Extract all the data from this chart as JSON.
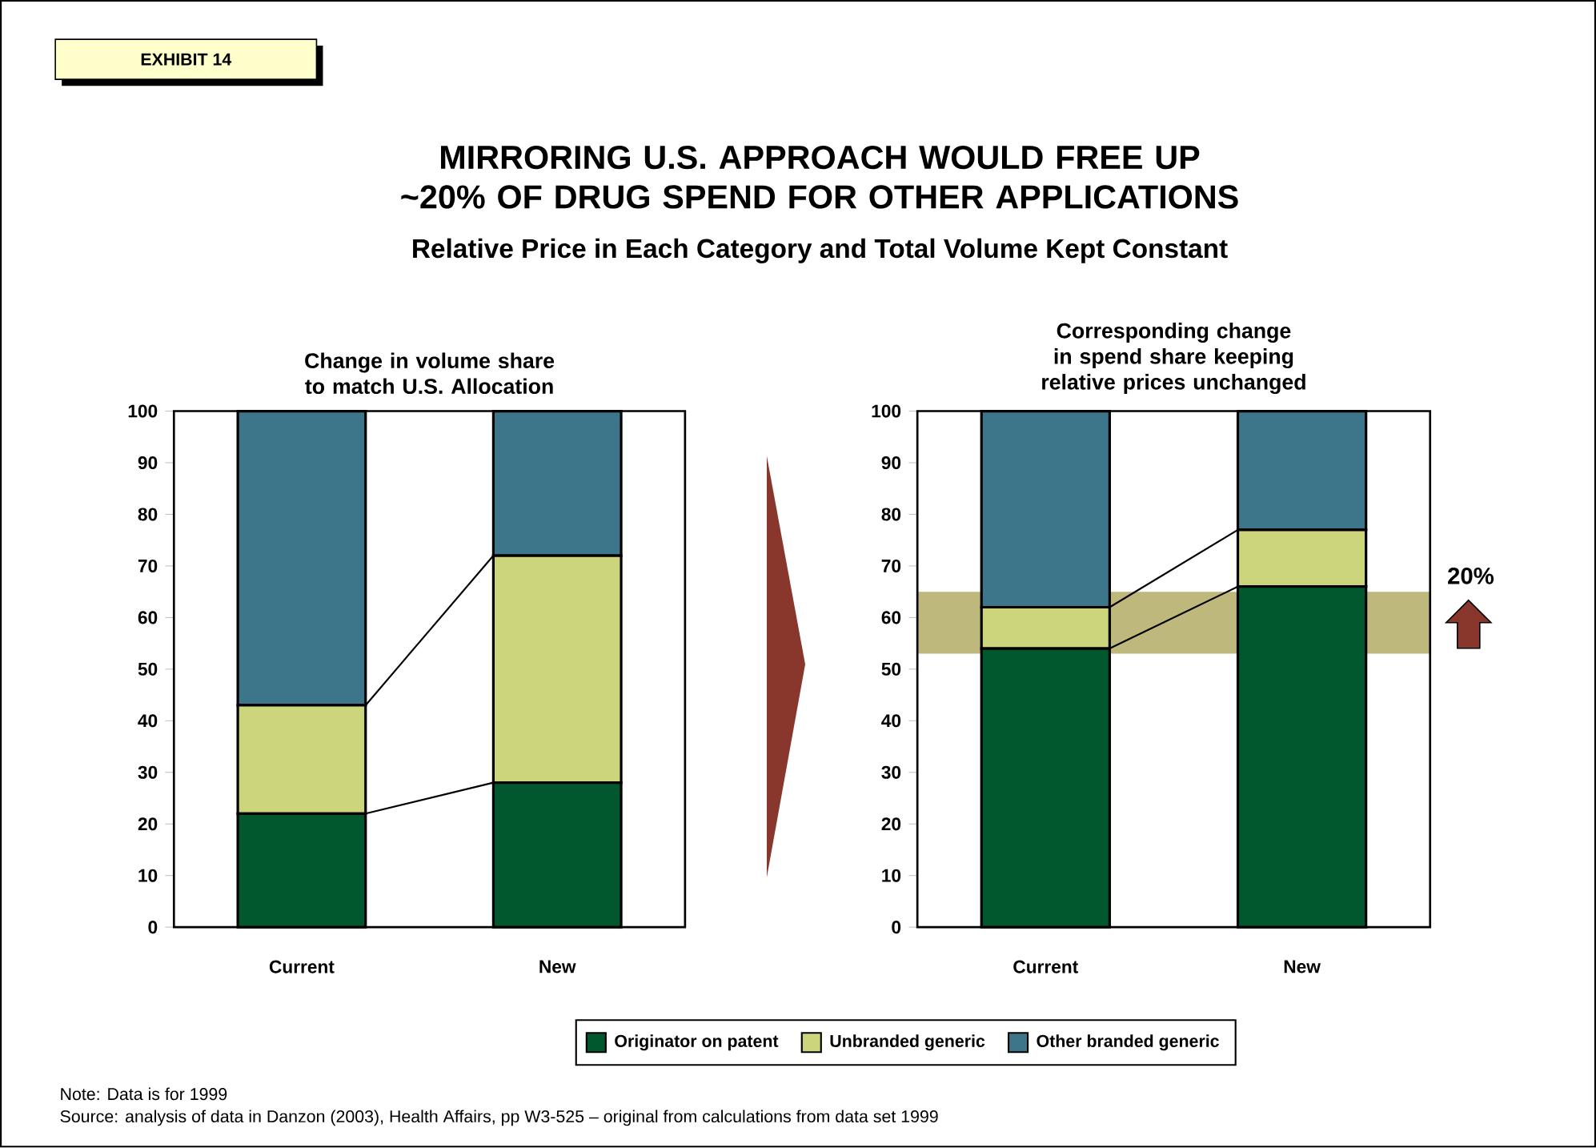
{
  "chart_data": [
    {
      "type": "bar",
      "stacked": true,
      "title": "Change in volume share to match U.S. Allocation",
      "categories": [
        "Current",
        "New"
      ],
      "series": [
        {
          "color": "#02582e",
          "values": [
            22,
            28
          ]
        },
        {
          "color": "#cdd57c",
          "values": [
            21,
            44
          ]
        },
        {
          "color": "#3d768a",
          "values": [
            57,
            28
          ]
        }
      ],
      "ylim": [
        0,
        100
      ],
      "yticks": [
        0,
        10,
        20,
        30,
        40,
        50,
        60,
        70,
        80,
        90,
        100
      ],
      "annotations": [
        "EXHIBIT 14",
        "MIRRORING U.S. APPROACH WOULD FREE UP ~20% OF DRUG SPEND FOR OTHER APPLICATIONS",
        "Relative Price in Each Category and Total Volume Kept Constant"
      ]
    },
    {
      "type": "bar",
      "stacked": true,
      "title": "Corresponding change in spend share keeping relative prices unchanged",
      "categories": [
        "Current",
        "New"
      ],
      "series": [
        {
          "name": "Originator on patent",
          "color": "#02582e",
          "values": [
            54,
            66
          ]
        },
        {
          "name": "Unbranded generic",
          "color": "#cdd57c",
          "values": [
            8,
            11
          ]
        },
        {
          "name": "Other branded generic",
          "color": "#3d768a",
          "values": [
            38,
            23
          ]
        }
      ],
      "ylim": [
        0,
        100
      ],
      "yticks": [
        0,
        10,
        20,
        30,
        40,
        50,
        60,
        70,
        80,
        90,
        100
      ],
      "bands": [
        {
          "axis": "y",
          "from": 53,
          "to": 65,
          "label": "20%",
          "color": "#bfb87c"
        }
      ],
      "legend": "bottom",
      "annotations": [
        "Note: Data is for 1999",
        "Source:     analysis of data in Danzon (2003), Health Affairs, pp W3-525 – original from calculations from data set 1999"
      ]
    }
  ]
}
